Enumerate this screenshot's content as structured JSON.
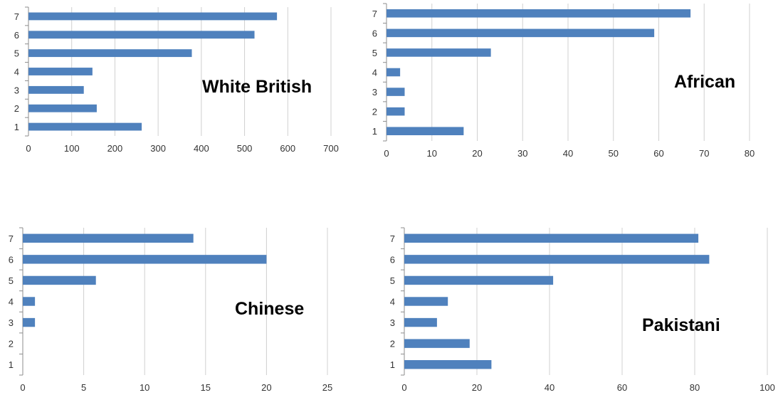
{
  "chart_data": [
    {
      "type": "bar",
      "orientation": "horizontal",
      "title": "White British",
      "categories": [
        "1",
        "2",
        "3",
        "4",
        "5",
        "6",
        "7"
      ],
      "values": [
        262,
        158,
        128,
        148,
        378,
        523,
        575
      ],
      "xlim": [
        0,
        700
      ],
      "xticks": [
        "0",
        "100",
        "200",
        "300",
        "400",
        "500",
        "600",
        "700"
      ],
      "grid": true,
      "color": "#4f81bd"
    },
    {
      "type": "bar",
      "orientation": "horizontal",
      "title": "African",
      "categories": [
        "1",
        "2",
        "3",
        "4",
        "5",
        "6",
        "7"
      ],
      "values": [
        17,
        4,
        4,
        3,
        23,
        59,
        67
      ],
      "xlim": [
        0,
        80
      ],
      "xticks": [
        "0",
        "10",
        "20",
        "30",
        "40",
        "50",
        "60",
        "70",
        "80"
      ],
      "grid": true,
      "color": "#4f81bd"
    },
    {
      "type": "bar",
      "orientation": "horizontal",
      "title": "Chinese",
      "categories": [
        "1",
        "2",
        "3",
        "4",
        "5",
        "6",
        "7"
      ],
      "values": [
        0,
        0,
        1,
        1,
        6,
        20,
        14
      ],
      "xlim": [
        0,
        25
      ],
      "xticks": [
        "0",
        "5",
        "10",
        "15",
        "20",
        "25"
      ],
      "grid": true,
      "color": "#4f81bd"
    },
    {
      "type": "bar",
      "orientation": "horizontal",
      "title": "Pakistani",
      "categories": [
        "1",
        "2",
        "3",
        "4",
        "5",
        "6",
        "7"
      ],
      "values": [
        24,
        18,
        9,
        12,
        41,
        84,
        81
      ],
      "xlim": [
        0,
        100
      ],
      "xticks": [
        "0",
        "20",
        "40",
        "60",
        "80",
        "100"
      ],
      "grid": true,
      "color": "#4f81bd"
    }
  ]
}
